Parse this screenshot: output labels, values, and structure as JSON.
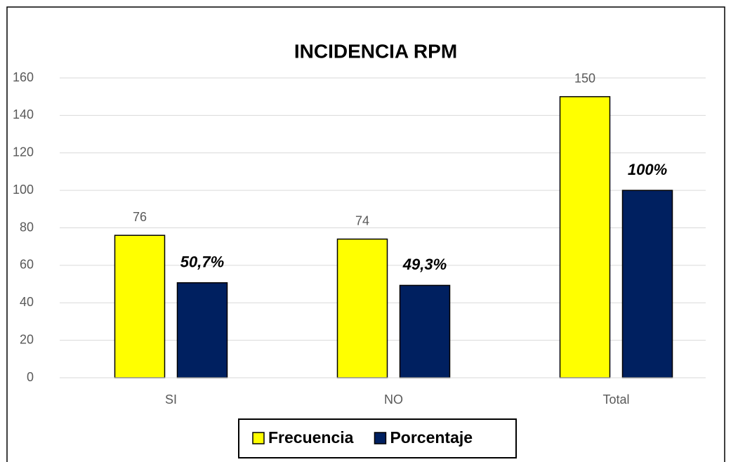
{
  "chart_data": {
    "type": "bar",
    "title": "INCIDENCIA RPM",
    "categories": [
      "SI",
      "NO",
      "Total"
    ],
    "series": [
      {
        "name": "Frecuencia",
        "color": "#ffff00",
        "values": [
          76,
          74,
          150
        ]
      },
      {
        "name": "Porcentaje",
        "color": "#002060",
        "values": [
          50.7,
          49.3,
          100
        ],
        "value_labels": [
          "50,7%",
          "49,3%",
          "100%"
        ]
      }
    ],
    "ylim": [
      0,
      160
    ],
    "yticks": [
      0,
      20,
      40,
      60,
      80,
      100,
      120,
      140,
      160
    ],
    "grid": true,
    "legend": "bottom"
  }
}
